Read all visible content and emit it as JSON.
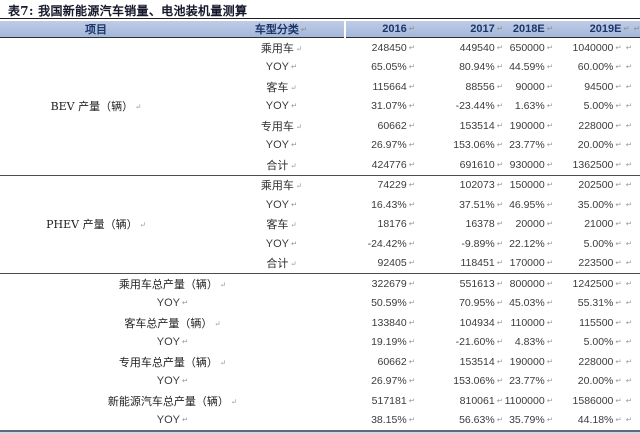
{
  "title": "表7: 我国新能源汽车销量、电池装机量测算",
  "colors": {
    "header_band": "#aebfde",
    "header_text": "#1c3668",
    "divider_line": "#4e4e52",
    "bottom_rule": "#5f6a7e"
  },
  "decorations": {
    "paragraph_mark": "↵"
  },
  "table": {
    "header": {
      "item": "项目",
      "type": "车型分类",
      "y2016": "2016",
      "y2017": "2017",
      "y2018": "2018E",
      "y2019": "2019E"
    },
    "groups": {
      "bev": "BEV 产量（辆）",
      "phev": "PHEV 产量（辆）"
    },
    "rows": [
      {
        "type": "乘用车",
        "v1": "248450",
        "v2": "449540",
        "v3": "650000",
        "v4": "1040000"
      },
      {
        "type": "YOY",
        "v1": "65.05%",
        "v2": "80.94%",
        "v3": "44.59%",
        "v4": "60.00%"
      },
      {
        "type": "客车",
        "v1": "115664",
        "v2": "88556",
        "v3": "90000",
        "v4": "94500"
      },
      {
        "type": "YOY",
        "v1": "31.07%",
        "v2": "-23.44%",
        "v3": "1.63%",
        "v4": "5.00%"
      },
      {
        "type": "专用车",
        "v1": "60662",
        "v2": "153514",
        "v3": "190000",
        "v4": "228000"
      },
      {
        "type": "YOY",
        "v1": "26.97%",
        "v2": "153.06%",
        "v3": "23.77%",
        "v4": "20.00%"
      },
      {
        "type": "合计",
        "v1": "424776",
        "v2": "691610",
        "v3": "930000",
        "v4": "1362500"
      },
      {
        "type": "乘用车",
        "v1": "74229",
        "v2": "102073",
        "v3": "150000",
        "v4": "202500"
      },
      {
        "type": "YOY",
        "v1": "16.43%",
        "v2": "37.51%",
        "v3": "46.95%",
        "v4": "35.00%"
      },
      {
        "type": "客车",
        "v1": "18176",
        "v2": "16378",
        "v3": "20000",
        "v4": "21000"
      },
      {
        "type": "YOY",
        "v1": "-24.42%",
        "v2": "-9.89%",
        "v3": "22.12%",
        "v4": "5.00%"
      },
      {
        "type": "合计",
        "v1": "92405",
        "v2": "118451",
        "v3": "170000",
        "v4": "223500"
      },
      {
        "type": "乘用车总产量（辆）",
        "v1": "322679",
        "v2": "551613",
        "v3": "800000",
        "v4": "1242500"
      },
      {
        "type": "YOY",
        "v1": "50.59%",
        "v2": "70.95%",
        "v3": "45.03%",
        "v4": "55.31%"
      },
      {
        "type": "客车总产量（辆）",
        "v1": "133840",
        "v2": "104934",
        "v3": "110000",
        "v4": "115500"
      },
      {
        "type": "YOY",
        "v1": "19.19%",
        "v2": "-21.60%",
        "v3": "4.83%",
        "v4": "5.00%"
      },
      {
        "type": "专用车总产量（辆）",
        "v1": "60662",
        "v2": "153514",
        "v3": "190000",
        "v4": "228000"
      },
      {
        "type": "YOY",
        "v1": "26.97%",
        "v2": "153.06%",
        "v3": "23.77%",
        "v4": "20.00%"
      },
      {
        "type": "新能源汽车总产量（辆）",
        "v1": "517181",
        "v2": "810061",
        "v3": "1100000",
        "v4": "1586000"
      },
      {
        "type": "YOY",
        "v1": "38.15%",
        "v2": "56.63%",
        "v3": "35.79%",
        "v4": "44.18%"
      }
    ]
  }
}
